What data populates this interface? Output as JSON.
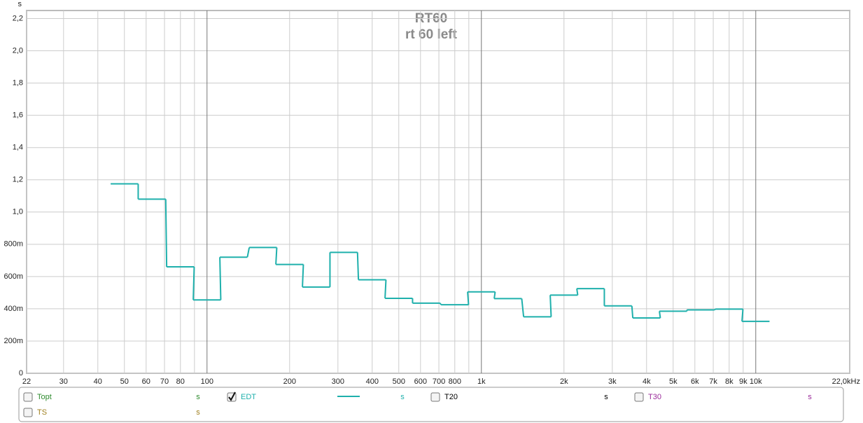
{
  "chart_data": {
    "type": "step",
    "title": "RT60",
    "subtitle": "rt 60 left",
    "y_unit": "s",
    "xscale": "log",
    "grid": true,
    "x": [
      50,
      63,
      80,
      100,
      125,
      160,
      200,
      250,
      315,
      400,
      500,
      630,
      800,
      1000,
      1250,
      1600,
      2000,
      2500,
      3150,
      4000,
      5000,
      6300,
      8000,
      10000
    ],
    "series": [
      {
        "name": "EDT",
        "unit": "s",
        "color": "#1fb0ac",
        "checked": true,
        "values": [
          1.175,
          1.08,
          0.66,
          0.455,
          0.72,
          0.78,
          0.675,
          0.535,
          0.75,
          0.58,
          0.465,
          0.435,
          0.425,
          0.505,
          0.463,
          0.35,
          0.485,
          0.525,
          0.418,
          0.343,
          0.385,
          0.393,
          0.398,
          0.322
        ]
      }
    ],
    "legend_items": [
      {
        "name": "Topt",
        "unit": "s",
        "color": "#2e8b2e",
        "checked": false
      },
      {
        "name": "T20",
        "unit": "s",
        "color": "#000000",
        "checked": false
      },
      {
        "name": "T30",
        "unit": "s",
        "color": "#9a2a9a",
        "checked": false
      },
      {
        "name": "TS",
        "unit": "s",
        "color": "#a08020",
        "checked": false
      }
    ],
    "xlim": [
      22,
      22000
    ],
    "xticks": [
      22,
      30,
      40,
      50,
      60,
      70,
      80,
      100,
      200,
      300,
      400,
      500,
      600,
      700,
      800,
      {
        "value": 1000,
        "label": "1k"
      },
      {
        "value": 2000,
        "label": "2k"
      },
      {
        "value": 3000,
        "label": "3k"
      },
      {
        "value": 4000,
        "label": "4k"
      },
      {
        "value": 5000,
        "label": "5k"
      },
      {
        "value": 6000,
        "label": "6k"
      },
      {
        "value": 7000,
        "label": "7k"
      },
      {
        "value": 8000,
        "label": "8k"
      },
      {
        "value": 9000,
        "label": "9k"
      },
      {
        "value": 10000,
        "label": "10k"
      },
      {
        "value": 22000,
        "label": "22,0kHz"
      }
    ],
    "xminor": [
      90,
      900
    ],
    "ylim": [
      0,
      2.25
    ],
    "yticks": [
      0,
      {
        "value": 0.2,
        "label": "200m"
      },
      {
        "value": 0.4,
        "label": "400m"
      },
      {
        "value": 0.6,
        "label": "600m"
      },
      {
        "value": 0.8,
        "label": "800m"
      },
      {
        "value": 1.0,
        "label": "1,0"
      },
      {
        "value": 1.2,
        "label": "1,2"
      },
      {
        "value": 1.4,
        "label": "1,4"
      },
      {
        "value": 1.6,
        "label": "1,6"
      },
      {
        "value": 1.8,
        "label": "1,8"
      },
      {
        "value": 2.0,
        "label": "2,0"
      },
      {
        "value": 2.2,
        "label": "2,2"
      }
    ]
  }
}
